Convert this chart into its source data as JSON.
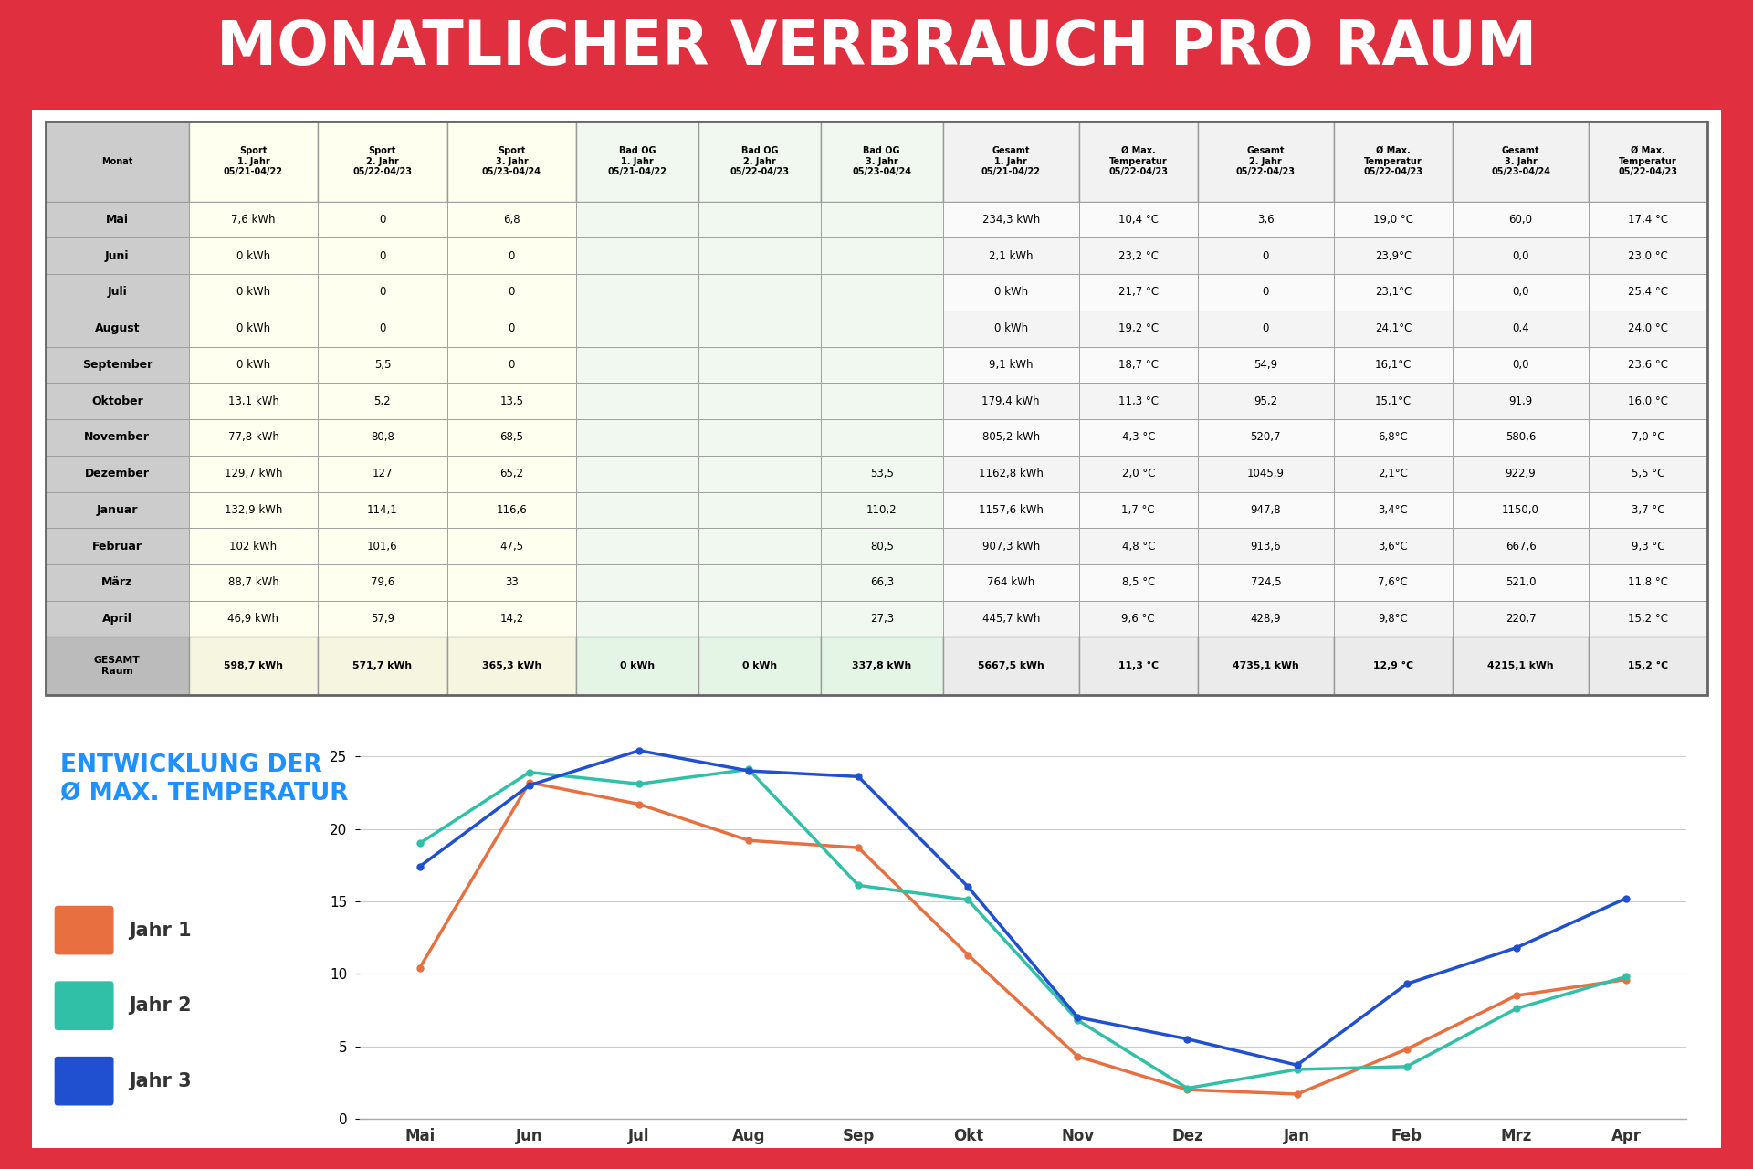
{
  "title": "MONATLICHER VERBRAUCH PRO RAUM",
  "title_bg": "#E03040",
  "title_color": "#FFFFFF",
  "bg_color": "#E03040",
  "panel_bg": "#FFFFFF",
  "months": [
    "Mai",
    "Juni",
    "Juli",
    "August",
    "September",
    "Oktober",
    "November",
    "Dezember",
    "Januar",
    "Februar",
    "März",
    "April"
  ],
  "months_short": [
    "Mai",
    "Jun",
    "Jul",
    "Aug",
    "Sep",
    "Okt",
    "Nov",
    "Dez",
    "Jan",
    "Feb",
    "Mrz",
    "Apr"
  ],
  "col_headers_line1": [
    "Sport",
    "Sport",
    "Sport",
    "Bad OG",
    "Bad OG",
    "Bad OG",
    "Gesamt",
    "Ø Max.",
    "Gesamt",
    "Ø Max.",
    "Gesamt",
    "Ø Max."
  ],
  "col_headers_line2": [
    "1. Jahr",
    "2. Jahr",
    "3. Jahr",
    "1. Jahr",
    "2. Jahr",
    "3. Jahr",
    "1. Jahr",
    "Temperatur",
    "2. Jahr",
    "Temperatur",
    "3. Jahr",
    "Temperatur"
  ],
  "col_headers_line3": [
    "05/21-04/22",
    "05/22-04/23",
    "05/23-04/24",
    "05/21-04/22",
    "05/22-04/23",
    "05/23-04/24",
    "05/21-04/22",
    "05/22-04/23",
    "05/22-04/23",
    "05/22-04/23",
    "05/23-04/24",
    "05/22-04/23"
  ],
  "table_data": [
    [
      "7,6 kWh",
      "0",
      "6,8",
      "",
      "",
      "",
      "234,3 kWh",
      "10,4 °C",
      "3,6",
      "19,0 °C",
      "60,0",
      "17,4 °C"
    ],
    [
      "0 kWh",
      "0",
      "0",
      "",
      "",
      "",
      "2,1 kWh",
      "23,2 °C",
      "0",
      "23,9°C",
      "0,0",
      "23,0 °C"
    ],
    [
      "0 kWh",
      "0",
      "0",
      "",
      "",
      "",
      "0 kWh",
      "21,7 °C",
      "0",
      "23,1°C",
      "0,0",
      "25,4 °C"
    ],
    [
      "0 kWh",
      "0",
      "0",
      "",
      "",
      "",
      "0 kWh",
      "19,2 °C",
      "0",
      "24,1°C",
      "0,4",
      "24,0 °C"
    ],
    [
      "0 kWh",
      "5,5",
      "0",
      "",
      "",
      "",
      "9,1 kWh",
      "18,7 °C",
      "54,9",
      "16,1°C",
      "0,0",
      "23,6 °C"
    ],
    [
      "13,1 kWh",
      "5,2",
      "13,5",
      "",
      "",
      "",
      "179,4 kWh",
      "11,3 °C",
      "95,2",
      "15,1°C",
      "91,9",
      "16,0 °C"
    ],
    [
      "77,8 kWh",
      "80,8",
      "68,5",
      "",
      "",
      "",
      "805,2 kWh",
      "4,3 °C",
      "520,7",
      "6,8°C",
      "580,6",
      "7,0 °C"
    ],
    [
      "129,7 kWh",
      "127",
      "65,2",
      "",
      "",
      "53,5",
      "1162,8 kWh",
      "2,0 °C",
      "1045,9",
      "2,1°C",
      "922,9",
      "5,5 °C"
    ],
    [
      "132,9 kWh",
      "114,1",
      "116,6",
      "",
      "",
      "110,2",
      "1157,6 kWh",
      "1,7 °C",
      "947,8",
      "3,4°C",
      "1150,0",
      "3,7 °C"
    ],
    [
      "102 kWh",
      "101,6",
      "47,5",
      "",
      "",
      "80,5",
      "907,3 kWh",
      "4,8 °C",
      "913,6",
      "3,6°C",
      "667,6",
      "9,3 °C"
    ],
    [
      "88,7 kWh",
      "79,6",
      "33",
      "",
      "",
      "66,3",
      "764 kWh",
      "8,5 °C",
      "724,5",
      "7,6°C",
      "521,0",
      "11,8 °C"
    ],
    [
      "46,9 kWh",
      "57,9",
      "14,2",
      "",
      "",
      "27,3",
      "445,7 kWh",
      "9,6 °C",
      "428,9",
      "9,8°C",
      "220,7",
      "15,2 °C"
    ]
  ],
  "gesamt_row": [
    "598,7 kWh",
    "571,7 kWh",
    "365,3 kWh",
    "0 kWh",
    "0 kWh",
    "337,8 kWh",
    "5667,5 kWh",
    "11,3 °C",
    "4735,1 kWh",
    "12,9 °C",
    "4215,1 kWh",
    "15,2 °C"
  ],
  "sport_bg": "#FFFFF0",
  "bad_bg": "#F0F8F0",
  "header_bg": "#CCCCCC",
  "gesamt_row_bg": "#DDDDDD",
  "month_col_bg": "#CCCCCC",
  "data_row_sport_odd": "#FFFFF5",
  "data_row_sport_even": "#FFFFF5",
  "data_row_bad_odd": "#F0FAF0",
  "data_row_bad_even": "#F0FAF0",
  "data_row_other_odd": "#FAFAFA",
  "data_row_other_even": "#F5F5F5",
  "chart_title_line1": "ENTWICKLUNG DER",
  "chart_title_line2": "Ø MAX. TEMPERATUR",
  "chart_title_color": "#1E90FF",
  "jahr1_color": "#E87040",
  "jahr2_color": "#30C0A8",
  "jahr3_color": "#2050D0",
  "jahr1_temps": [
    10.4,
    23.2,
    21.7,
    19.2,
    18.7,
    11.3,
    4.3,
    2.0,
    1.7,
    4.8,
    8.5,
    9.6
  ],
  "jahr2_temps": [
    19.0,
    23.9,
    23.1,
    24.1,
    16.1,
    15.1,
    6.8,
    2.1,
    3.4,
    3.6,
    7.6,
    9.8
  ],
  "jahr3_temps": [
    17.4,
    23.0,
    25.4,
    24.0,
    23.6,
    16.0,
    7.0,
    5.5,
    3.7,
    9.3,
    11.8,
    15.2
  ],
  "ylim": [
    0,
    26
  ],
  "yticks": [
    0,
    5,
    10,
    15,
    20,
    25
  ]
}
